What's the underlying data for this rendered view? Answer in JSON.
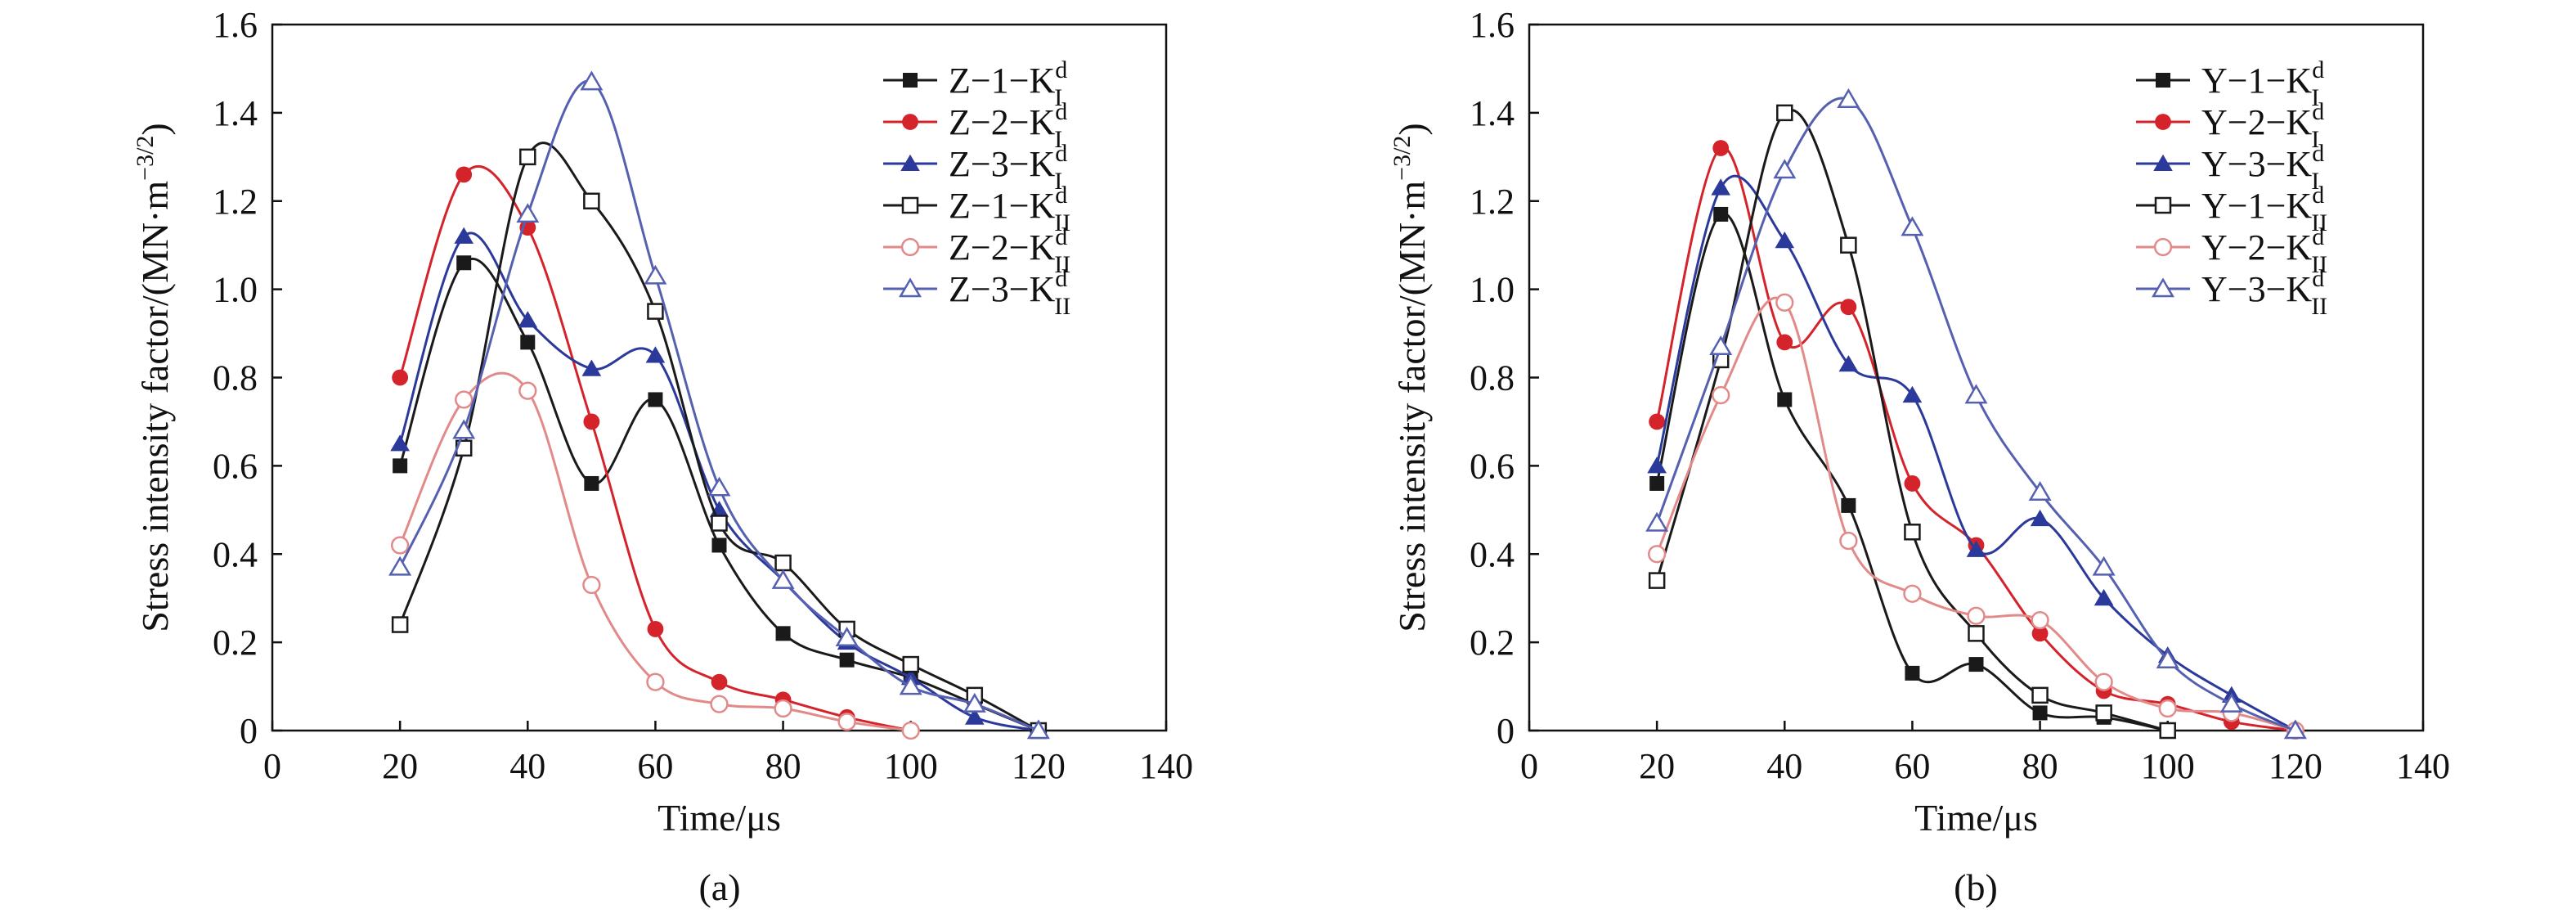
{
  "figure": {
    "panel_captions": [
      "(a)",
      "(b)"
    ]
  },
  "chart_data": [
    {
      "type": "line",
      "panel": "(a)",
      "xlabel": "Time/μs",
      "ylabel": "Stress intensity factor/(MN·m",
      "ylabel_exp": "−3/2",
      "ylabel_close": ")",
      "xlim": [
        0,
        140
      ],
      "ylim": [
        0,
        1.6
      ],
      "xticks": [
        0,
        20,
        40,
        60,
        80,
        100,
        120,
        140
      ],
      "yticks": [
        0,
        0.2,
        0.4,
        0.6,
        0.8,
        1.0,
        1.2,
        1.4,
        1.6
      ],
      "ytick_labels": [
        "0",
        "0.2",
        "0.4",
        "0.6",
        "0.8",
        "1.0",
        "1.2",
        "1.4",
        "1.6"
      ],
      "legend_position": "top-right",
      "grid": false,
      "series": [
        {
          "name": "Z−1−K",
          "sup": "d",
          "sub": "I",
          "color": "#1a1a1a",
          "marker": "square",
          "filled": true,
          "x": [
            20,
            30,
            40,
            50,
            60,
            70,
            80,
            90,
            100,
            110,
            120
          ],
          "y": [
            0.6,
            1.06,
            0.88,
            0.56,
            0.75,
            0.42,
            0.22,
            0.16,
            0.12,
            0.06,
            0.0
          ]
        },
        {
          "name": "Z−2−K",
          "sup": "d",
          "sub": "I",
          "color": "#d4232b",
          "marker": "circle",
          "filled": true,
          "x": [
            20,
            30,
            40,
            50,
            60,
            70,
            80,
            90,
            100
          ],
          "y": [
            0.8,
            1.26,
            1.14,
            0.7,
            0.23,
            0.11,
            0.07,
            0.03,
            0.0
          ]
        },
        {
          "name": "Z−3−K",
          "sup": "d",
          "sub": "I",
          "color": "#2b3a9a",
          "marker": "triangle",
          "filled": true,
          "x": [
            20,
            30,
            40,
            50,
            60,
            70,
            80,
            90,
            100,
            110,
            120
          ],
          "y": [
            0.65,
            1.12,
            0.93,
            0.82,
            0.85,
            0.5,
            0.34,
            0.2,
            0.12,
            0.03,
            0.0
          ]
        },
        {
          "name": "Z−1−K",
          "sup": "d",
          "sub": "II",
          "color": "#1a1a1a",
          "marker": "square",
          "filled": false,
          "x": [
            20,
            30,
            40,
            50,
            60,
            70,
            80,
            90,
            100,
            110,
            120
          ],
          "y": [
            0.24,
            0.64,
            1.3,
            1.2,
            0.95,
            0.47,
            0.38,
            0.23,
            0.15,
            0.08,
            0.0
          ]
        },
        {
          "name": "Z−2−K",
          "sup": "d",
          "sub": "II",
          "color": "#e28a8a",
          "marker": "circle",
          "filled": false,
          "x": [
            20,
            30,
            40,
            50,
            60,
            70,
            80,
            90,
            100
          ],
          "y": [
            0.42,
            0.75,
            0.77,
            0.33,
            0.11,
            0.06,
            0.05,
            0.02,
            0.0
          ]
        },
        {
          "name": "Z−3−K",
          "sup": "d",
          "sub": "II",
          "color": "#5560b0",
          "marker": "triangle",
          "filled": false,
          "x": [
            20,
            30,
            40,
            50,
            60,
            70,
            80,
            90,
            100,
            110,
            120
          ],
          "y": [
            0.37,
            0.68,
            1.17,
            1.47,
            1.03,
            0.55,
            0.34,
            0.21,
            0.1,
            0.06,
            0.0
          ]
        }
      ]
    },
    {
      "type": "line",
      "panel": "(b)",
      "xlabel": "Time/μs",
      "ylabel": "Stress intensity factor/(MN·m",
      "ylabel_exp": "−3/2",
      "ylabel_close": ")",
      "xlim": [
        0,
        140
      ],
      "ylim": [
        0,
        1.6
      ],
      "xticks": [
        0,
        20,
        40,
        60,
        80,
        100,
        120,
        140
      ],
      "yticks": [
        0,
        0.2,
        0.4,
        0.6,
        0.8,
        1.0,
        1.2,
        1.4,
        1.6
      ],
      "ytick_labels": [
        "0",
        "0.2",
        "0.4",
        "0.6",
        "0.8",
        "1.0",
        "1.2",
        "1.4",
        "1.6"
      ],
      "legend_position": "top-right",
      "grid": false,
      "series": [
        {
          "name": "Y−1−K",
          "sup": "d",
          "sub": "I",
          "color": "#1a1a1a",
          "marker": "square",
          "filled": true,
          "x": [
            20,
            30,
            40,
            50,
            60,
            70,
            80,
            90,
            100
          ],
          "y": [
            0.56,
            1.17,
            0.75,
            0.51,
            0.13,
            0.15,
            0.04,
            0.03,
            0.0
          ]
        },
        {
          "name": "Y−2−K",
          "sup": "d",
          "sub": "I",
          "color": "#d4232b",
          "marker": "circle",
          "filled": true,
          "x": [
            20,
            30,
            40,
            50,
            60,
            70,
            80,
            90,
            100,
            110,
            120
          ],
          "y": [
            0.7,
            1.32,
            0.88,
            0.96,
            0.56,
            0.42,
            0.22,
            0.09,
            0.06,
            0.02,
            0.0
          ]
        },
        {
          "name": "Y−3−K",
          "sup": "d",
          "sub": "I",
          "color": "#2b3a9a",
          "marker": "triangle",
          "filled": true,
          "x": [
            20,
            30,
            40,
            50,
            60,
            70,
            80,
            90,
            100,
            110,
            120
          ],
          "y": [
            0.6,
            1.23,
            1.11,
            0.83,
            0.76,
            0.41,
            0.48,
            0.3,
            0.17,
            0.08,
            0.0
          ]
        },
        {
          "name": "Y−1−K",
          "sup": "d",
          "sub": "II",
          "color": "#1a1a1a",
          "marker": "square",
          "filled": false,
          "x": [
            20,
            30,
            40,
            50,
            60,
            70,
            80,
            90,
            100
          ],
          "y": [
            0.34,
            0.84,
            1.4,
            1.1,
            0.45,
            0.22,
            0.08,
            0.04,
            0.0
          ]
        },
        {
          "name": "Y−2−K",
          "sup": "d",
          "sub": "II",
          "color": "#e28a8a",
          "marker": "circle",
          "filled": false,
          "x": [
            20,
            30,
            40,
            50,
            60,
            70,
            80,
            90,
            100,
            110,
            120
          ],
          "y": [
            0.4,
            0.76,
            0.97,
            0.43,
            0.31,
            0.26,
            0.25,
            0.11,
            0.05,
            0.04,
            0.0
          ]
        },
        {
          "name": "Y−3−K",
          "sup": "d",
          "sub": "II",
          "color": "#5560b0",
          "marker": "triangle",
          "filled": false,
          "x": [
            20,
            30,
            40,
            50,
            60,
            70,
            80,
            90,
            100,
            110,
            120
          ],
          "y": [
            0.47,
            0.87,
            1.27,
            1.43,
            1.14,
            0.76,
            0.54,
            0.37,
            0.16,
            0.06,
            0.0
          ]
        }
      ]
    }
  ]
}
